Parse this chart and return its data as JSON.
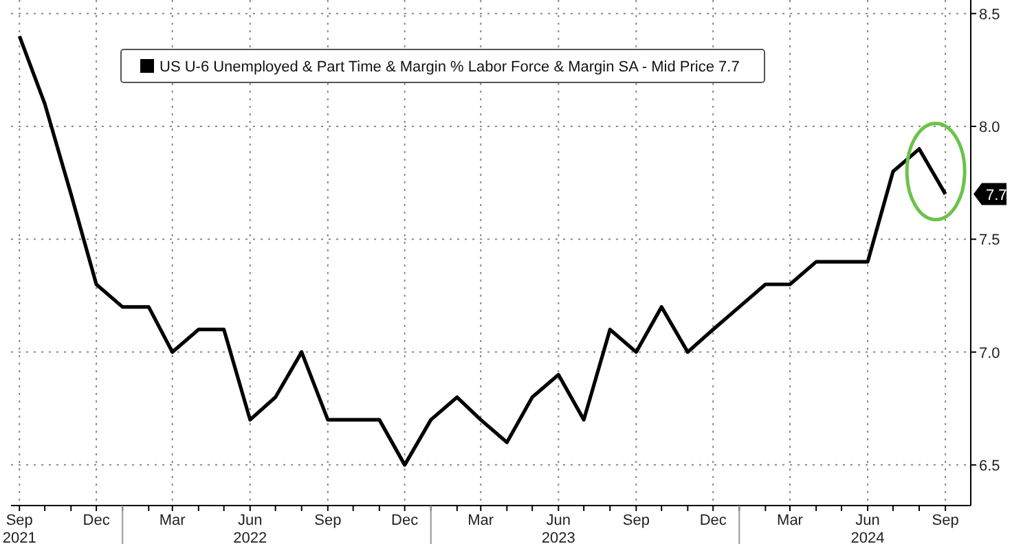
{
  "chart_data": {
    "type": "line",
    "x": [
      "2021-09",
      "2021-10",
      "2021-11",
      "2021-12",
      "2022-01",
      "2022-02",
      "2022-03",
      "2022-04",
      "2022-05",
      "2022-06",
      "2022-07",
      "2022-08",
      "2022-09",
      "2022-10",
      "2022-11",
      "2022-12",
      "2023-01",
      "2023-02",
      "2023-03",
      "2023-04",
      "2023-05",
      "2023-06",
      "2023-07",
      "2023-08",
      "2023-09",
      "2023-10",
      "2023-11",
      "2023-12",
      "2024-01",
      "2024-02",
      "2024-03",
      "2024-04",
      "2024-05",
      "2024-06",
      "2024-07",
      "2024-08",
      "2024-09"
    ],
    "series": [
      {
        "name": "US U-6 Unemployed & Part Time & Margin % Labor Force & Margin SA - Mid Price 7.7",
        "color": "#000000",
        "values": [
          8.4,
          8.1,
          7.7,
          7.3,
          7.2,
          7.2,
          7.0,
          7.1,
          7.1,
          6.7,
          6.8,
          7.0,
          6.7,
          6.7,
          6.7,
          6.5,
          6.7,
          6.8,
          6.7,
          6.6,
          6.8,
          6.9,
          6.7,
          7.1,
          7.0,
          7.2,
          7.0,
          7.1,
          7.2,
          7.3,
          7.3,
          7.4,
          7.4,
          7.4,
          7.8,
          7.9,
          7.7
        ]
      }
    ],
    "xlim": [
      "2021-08-22",
      "2024-10-01"
    ],
    "xticks": [
      {
        "value": "2021-09",
        "label": "Sep\n2021"
      },
      {
        "value": "2021-12",
        "label": "Dec"
      },
      {
        "value": "2022-03",
        "label": "Mar"
      },
      {
        "value": "2022-06",
        "label": "Jun\n2022"
      },
      {
        "value": "2022-09",
        "label": "Sep"
      },
      {
        "value": "2022-12",
        "label": "Dec"
      },
      {
        "value": "2023-03",
        "label": "Mar"
      },
      {
        "value": "2023-06",
        "label": "Jun\n2023"
      },
      {
        "value": "2023-09",
        "label": "Sep"
      },
      {
        "value": "2023-12",
        "label": "Dec"
      },
      {
        "value": "2024-03",
        "label": "Mar"
      },
      {
        "value": "2024-06",
        "label": "Jun\n2024"
      },
      {
        "value": "2024-09",
        "label": "Sep"
      }
    ],
    "ylim": [
      6.32,
      8.56
    ],
    "yticks": [
      {
        "value": 6.5,
        "label": "6.5"
      },
      {
        "value": 7,
        "label": "7.0"
      },
      {
        "value": 7.5,
        "label": "7.5"
      },
      {
        "value": 8,
        "label": "8.0"
      },
      {
        "value": 8.5,
        "label": "8.5"
      }
    ],
    "grid": true,
    "legend": "top",
    "line_style": "solid",
    "marker": "none",
    "annotations": [
      {
        "text": "7.7",
        "x": "2024-09",
        "y": 7.7
      }
    ]
  }
}
